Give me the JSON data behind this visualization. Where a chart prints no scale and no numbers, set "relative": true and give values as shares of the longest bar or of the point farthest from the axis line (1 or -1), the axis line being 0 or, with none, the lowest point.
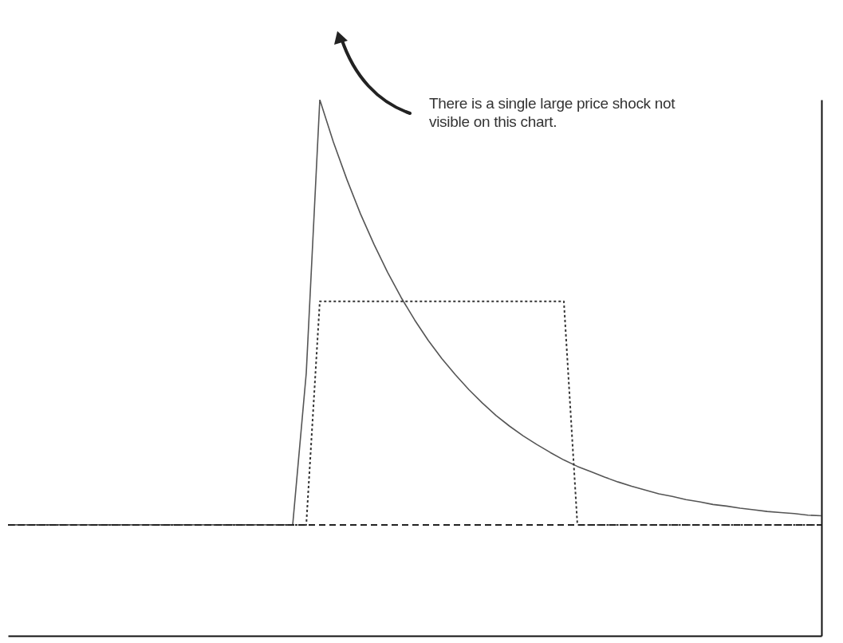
{
  "chart_data": {
    "type": "line",
    "relative": true,
    "marker": "none",
    "grid": false,
    "categories": [
      null,
      null,
      null,
      null,
      null,
      null,
      null,
      null,
      null,
      null,
      null,
      null,
      null,
      null,
      null,
      null,
      null,
      null,
      null,
      null,
      null,
      null,
      null,
      null,
      null,
      null,
      null,
      null,
      null,
      null,
      null,
      null,
      null,
      null,
      null,
      null,
      null,
      null,
      null,
      null,
      null,
      null,
      null,
      null,
      null,
      null,
      null,
      null,
      null,
      null,
      null,
      null,
      null,
      null,
      null,
      null,
      null,
      null,
      null,
      null,
      null
    ],
    "annotations": [
      "There is a single large price shock not visible on this chart."
    ],
    "series": [
      {
        "color": "#555555",
        "line_style": "solid",
        "values": [
          0.207,
          0.207,
          0.207,
          0.207,
          0.207,
          0.207,
          0.207,
          0.207,
          0.207,
          0.207,
          0.207,
          0.207,
          0.207,
          0.207,
          0.207,
          0.207,
          0.207,
          0.207,
          0.207,
          0.207,
          0.207,
          0.207,
          0.49,
          1.0,
          0.921,
          0.851,
          0.787,
          0.73,
          0.678,
          0.631,
          0.589,
          0.551,
          0.517,
          0.487,
          0.459,
          0.434,
          0.411,
          0.391,
          0.373,
          0.357,
          0.342,
          0.328,
          0.316,
          0.306,
          0.296,
          0.287,
          0.279,
          0.272,
          0.265,
          0.26,
          0.254,
          0.25,
          0.245,
          0.242,
          0.238,
          0.235,
          0.232,
          0.23,
          0.228,
          0.225,
          0.224
        ]
      },
      {
        "color": "#333333",
        "line_style": "dotted",
        "values": [
          0.207,
          0.207,
          0.207,
          0.207,
          0.207,
          0.207,
          0.207,
          0.207,
          0.207,
          0.207,
          0.207,
          0.207,
          0.207,
          0.207,
          0.207,
          0.207,
          0.207,
          0.207,
          0.207,
          0.207,
          0.207,
          0.207,
          0.207,
          0.624,
          0.624,
          0.624,
          0.624,
          0.624,
          0.624,
          0.624,
          0.624,
          0.624,
          0.624,
          0.624,
          0.624,
          0.624,
          0.624,
          0.624,
          0.624,
          0.624,
          0.624,
          0.624,
          0.207,
          0.207,
          0.207,
          0.207,
          0.207,
          0.207,
          0.207,
          0.207,
          0.207,
          0.207,
          0.207,
          0.207,
          0.207,
          0.207,
          0.207,
          0.207,
          0.207,
          0.207,
          0.207
        ]
      },
      {
        "color": "#222222",
        "line_style": "dashed",
        "values": [
          0.207,
          0.207,
          0.207,
          0.207,
          0.207,
          0.207,
          0.207,
          0.207,
          0.207,
          0.207,
          0.207,
          0.207,
          0.207,
          0.207,
          0.207,
          0.207,
          0.207,
          0.207,
          0.207,
          0.207,
          0.207,
          0.207,
          0.207,
          0.207,
          0.207,
          0.207,
          0.207,
          0.207,
          0.207,
          0.207,
          0.207,
          0.207,
          0.207,
          0.207,
          0.207,
          0.207,
          0.207,
          0.207,
          0.207,
          0.207,
          0.207,
          0.207,
          0.207,
          0.207,
          0.207,
          0.207,
          0.207,
          0.207,
          0.207,
          0.207,
          0.207,
          0.207,
          0.207,
          0.207,
          0.207,
          0.207,
          0.207,
          0.207,
          0.207,
          0.207,
          0.207
        ]
      }
    ]
  }
}
